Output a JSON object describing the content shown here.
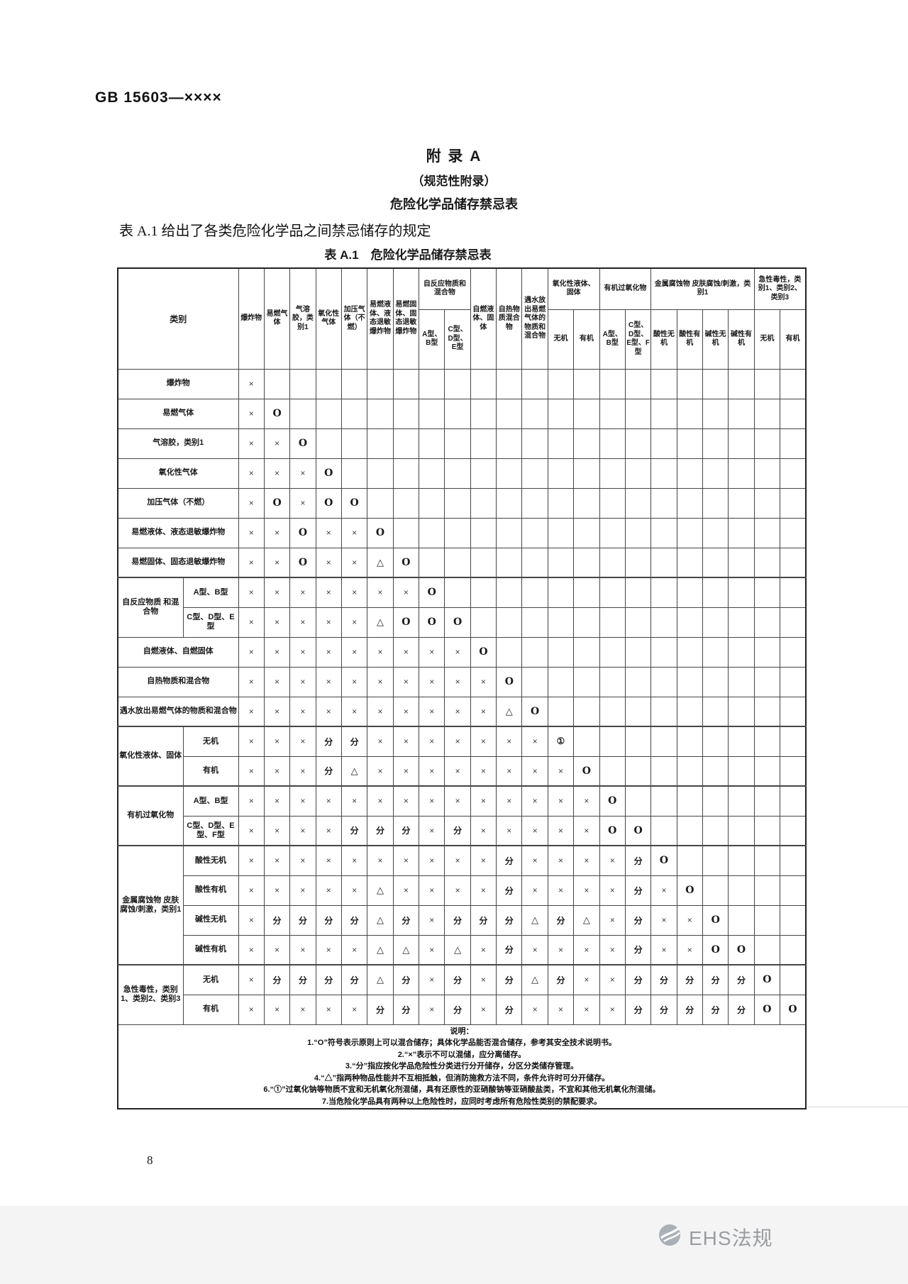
{
  "page": {
    "doc_code": "GB 15603—××××",
    "appendix_title": "附 录 A",
    "appendix_subtitle": "（规范性附录）",
    "appendix_heading": "危险化学品储存禁忌表",
    "intro": "表 A.1 给出了各类危险化学品之间禁忌储存的规定",
    "table_caption": "表 A.1　危险化学品储存禁忌表",
    "page_number": "8",
    "watermark": "EHS法规"
  },
  "table": {
    "corner_label": "类别",
    "header_groups": [
      {
        "label": "爆炸物",
        "span": 1
      },
      {
        "label": "易燃气体",
        "span": 1
      },
      {
        "label": "气溶胶，类别1",
        "span": 1
      },
      {
        "label": "氧化性气体",
        "span": 1
      },
      {
        "label": "加压气体（不燃）",
        "span": 1
      },
      {
        "label": "易燃液体、液态退敏爆炸物",
        "span": 1
      },
      {
        "label": "易燃固体、固态退敏爆炸物",
        "span": 1
      },
      {
        "label": "自反应物质和混合物",
        "span": 2,
        "subs": [
          "A型、B型",
          "C型、D型、E型"
        ]
      },
      {
        "label": "自燃液体、固体",
        "span": 1
      },
      {
        "label": "自热物质混合物",
        "span": 1
      },
      {
        "label": "遇水放出易燃气体的物质和混合物",
        "span": 1,
        "align": "top"
      },
      {
        "label": "氧化性液体、固体",
        "span": 2,
        "subs": [
          "无机",
          "有机"
        ]
      },
      {
        "label": "有机过氧化物",
        "span": 2,
        "subs": [
          "A型、B型",
          "C型、D型、E型、F型"
        ]
      },
      {
        "label": "金属腐蚀物 皮肤腐蚀/刺激，类别1",
        "span": 4,
        "subs": [
          "酸性无机",
          "酸性有机",
          "碱性无机",
          "碱性有机"
        ]
      },
      {
        "label": "急性毒性，类别1、类别2、类别3",
        "span": 2,
        "subs": [
          "无机",
          "有机"
        ]
      }
    ],
    "rows": [
      {
        "label": "爆炸物",
        "values": [
          "×"
        ]
      },
      {
        "label": "易燃气体",
        "values": [
          "×",
          "O"
        ]
      },
      {
        "label": "气溶胶，类别1",
        "values": [
          "×",
          "×",
          "O"
        ]
      },
      {
        "label": "氧化性气体",
        "values": [
          "×",
          "×",
          "×",
          "O"
        ]
      },
      {
        "label": "加压气体（不燃）",
        "values": [
          "×",
          "O",
          "×",
          "O",
          "O"
        ]
      },
      {
        "label": "易燃液体、液态退敏爆炸物",
        "values": [
          "×",
          "×",
          "O",
          "×",
          "×",
          "O"
        ]
      },
      {
        "label": "易燃固体、固态退敏爆炸物",
        "values": [
          "×",
          "×",
          "O",
          "×",
          "×",
          "△",
          "O"
        ]
      },
      {
        "label": "自反应物质 和混合物",
        "sub": "A型、B型",
        "group_rows": 2,
        "values": [
          "×",
          "×",
          "×",
          "×",
          "×",
          "×",
          "×",
          "O"
        ]
      },
      {
        "sub": "C型、D型、E型",
        "values": [
          "×",
          "×",
          "×",
          "×",
          "×",
          "△",
          "O",
          "O",
          "O"
        ]
      },
      {
        "label": "自燃液体、自燃固体",
        "values": [
          "×",
          "×",
          "×",
          "×",
          "×",
          "×",
          "×",
          "×",
          "×",
          "O"
        ]
      },
      {
        "label": "自热物质和混合物",
        "values": [
          "×",
          "×",
          "×",
          "×",
          "×",
          "×",
          "×",
          "×",
          "×",
          "×",
          "O"
        ]
      },
      {
        "label": "遇水放出易燃气体的物质和混合物",
        "values": [
          "×",
          "×",
          "×",
          "×",
          "×",
          "×",
          "×",
          "×",
          "×",
          "×",
          "△",
          "O"
        ]
      },
      {
        "label": "氧化性液体、固体",
        "sub": "无机",
        "group_rows": 2,
        "values": [
          "×",
          "×",
          "×",
          "分",
          "分",
          "×",
          "×",
          "×",
          "×",
          "×",
          "×",
          "×",
          "①"
        ]
      },
      {
        "sub": "有机",
        "values": [
          "×",
          "×",
          "×",
          "分",
          "△",
          "×",
          "×",
          "×",
          "×",
          "×",
          "×",
          "×",
          "×",
          "O"
        ]
      },
      {
        "label": "有机过氧化物",
        "sub": "A型、B型",
        "group_rows": 2,
        "values": [
          "×",
          "×",
          "×",
          "×",
          "×",
          "×",
          "×",
          "×",
          "×",
          "×",
          "×",
          "×",
          "×",
          "×",
          "O"
        ]
      },
      {
        "sub": "C型、D型、E型、F型",
        "values": [
          "×",
          "×",
          "×",
          "×",
          "分",
          "分",
          "分",
          "×",
          "分",
          "×",
          "×",
          "×",
          "×",
          "×",
          "O",
          "O"
        ]
      },
      {
        "label": "金属腐蚀物 皮肤腐蚀/刺激，类别1",
        "sub": "酸性无机",
        "group_rows": 4,
        "values": [
          "×",
          "×",
          "×",
          "×",
          "×",
          "×",
          "×",
          "×",
          "×",
          "×",
          "分",
          "×",
          "×",
          "×",
          "×",
          "分",
          "O"
        ]
      },
      {
        "sub": "酸性有机",
        "values": [
          "×",
          "×",
          "×",
          "×",
          "×",
          "△",
          "×",
          "×",
          "×",
          "×",
          "分",
          "×",
          "×",
          "×",
          "×",
          "分",
          "×",
          "O"
        ]
      },
      {
        "sub": "碱性无机",
        "values": [
          "×",
          "分",
          "分",
          "分",
          "分",
          "△",
          "分",
          "×",
          "分",
          "分",
          "分",
          "△",
          "分",
          "△",
          "×",
          "分",
          "×",
          "×",
          "O"
        ]
      },
      {
        "sub": "碱性有机",
        "values": [
          "×",
          "×",
          "×",
          "×",
          "×",
          "△",
          "△",
          "×",
          "△",
          "×",
          "分",
          "×",
          "×",
          "×",
          "×",
          "分",
          "×",
          "×",
          "O",
          "O"
        ]
      },
      {
        "label": "急性毒性，类别1、类别2、类别3",
        "sub": "无机",
        "group_rows": 2,
        "values": [
          "×",
          "分",
          "分",
          "分",
          "分",
          "△",
          "分",
          "×",
          "分",
          "×",
          "分",
          "△",
          "分",
          "×",
          "×",
          "分",
          "分",
          "分",
          "分",
          "分",
          "O"
        ]
      },
      {
        "sub": "有机",
        "values": [
          "×",
          "×",
          "×",
          "×",
          "×",
          "分",
          "分",
          "×",
          "分",
          "×",
          "分",
          "×",
          "×",
          "×",
          "×",
          "分",
          "分",
          "分",
          "分",
          "分",
          "O",
          "O"
        ]
      }
    ],
    "notes_title": "说明：",
    "notes": [
      "1.“O”符号表示原则上可以混合储存；具体化学品能否混合储存，参考其安全技术说明书。",
      "2.“×”表示不可以混储，应分离储存。",
      "3.“分”指应按化学品危险性分类进行分开储存，分区分类储存管理。",
      "4.“△”指两种物品性能并不互相抵触，但消防施救方法不同，条件允许时可分开储存。",
      "6.“①”过氧化钠等物质不宜和无机氧化剂混储，具有还原性的亚硝酸钠等亚硝酸盐类，不宜和其他无机氧化剂混储。",
      "7.当危险化学品具有两种以上危险性时，应同时考虑所有危险性类别的禁配要求。"
    ]
  }
}
